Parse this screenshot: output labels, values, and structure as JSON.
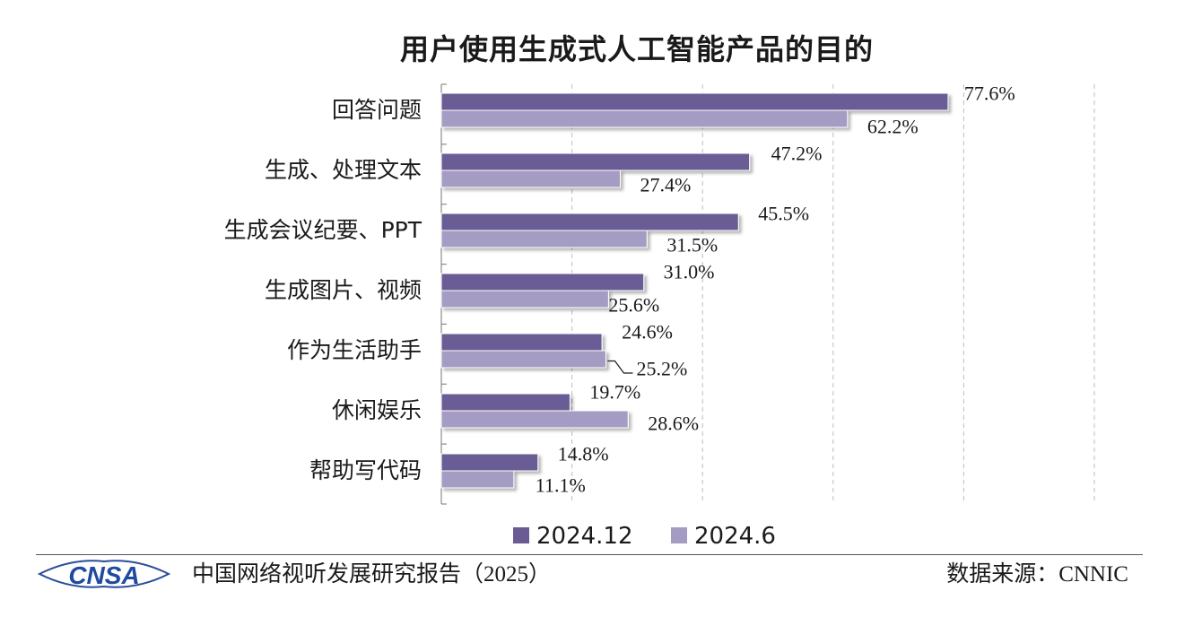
{
  "chart_data": {
    "type": "bar",
    "orientation": "horizontal",
    "title": "用户使用生成式人工智能产品的目的",
    "categories": [
      "回答问题",
      "生成、处理文本",
      "生成会议纪要、PPT",
      "生成图片、视频",
      "作为生活助手",
      "休闲娱乐",
      "帮助写代码"
    ],
    "series": [
      {
        "name": "2024.12",
        "color": "#6b5b95",
        "values": [
          77.6,
          47.2,
          45.5,
          31.0,
          24.6,
          19.7,
          14.8
        ],
        "labels": [
          "77.6%",
          "47.2%",
          "45.5%",
          "31.0%",
          "24.6%",
          "19.7%",
          "14.8%"
        ]
      },
      {
        "name": "2024.6",
        "color": "#a59cc4",
        "values": [
          62.2,
          27.4,
          31.5,
          25.6,
          25.2,
          28.6,
          11.1
        ],
        "labels": [
          "62.2%",
          "27.4%",
          "31.5%",
          "25.6%",
          "25.2%",
          "28.6%",
          "11.1%"
        ]
      }
    ],
    "xlim": [
      0,
      100
    ],
    "grid": "vertical-dashed",
    "legend_position": "bottom"
  },
  "footer": {
    "logo_text": "CNSA",
    "report_title": "中国网络视听发展研究报告",
    "report_year": "（2025）",
    "source_label": "数据来源：",
    "source_value": "CNNIC"
  }
}
